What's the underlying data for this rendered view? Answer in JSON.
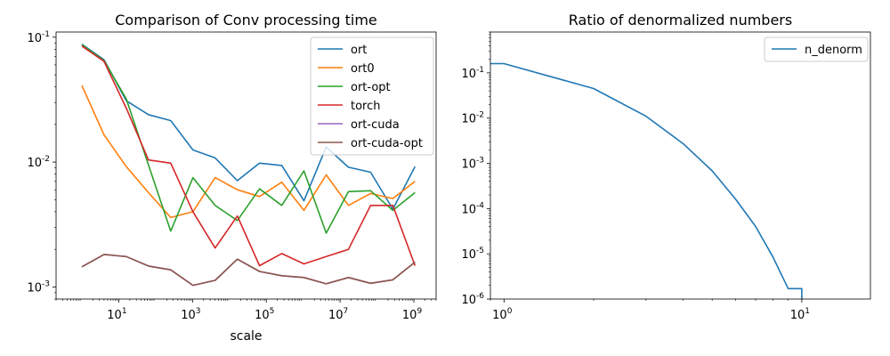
{
  "chart_data": [
    {
      "type": "line",
      "title": "Comparison of Conv processing time",
      "xlabel": "scale",
      "ylabel": "",
      "xscale": "log",
      "yscale": "log",
      "xlim": [
        0.2,
        4000000000.0
      ],
      "ylim": [
        0.0008,
        0.11
      ],
      "xtick_labels": [
        "10^1",
        "10^3",
        "10^5",
        "10^7",
        "10^9"
      ],
      "ytick_labels": [
        "10^-3",
        "10^-2",
        "10^-1"
      ],
      "legend_position": "top-right",
      "grid": false,
      "x": [
        1,
        4,
        16,
        64,
        256,
        1024,
        4096,
        16384,
        65536,
        262144,
        1048576,
        4194304,
        16777216,
        67108864,
        268435456,
        1073741824
      ],
      "series": [
        {
          "name": "ort",
          "color": "#1f77b4",
          "values": [
            0.088,
            0.066,
            0.031,
            0.024,
            0.0215,
            0.0125,
            0.0108,
            0.0071,
            0.0098,
            0.0094,
            0.0049,
            0.0132,
            0.0091,
            0.0083,
            0.0042,
            0.0092
          ]
        },
        {
          "name": "ort0",
          "color": "#ff7f0e",
          "values": [
            0.041,
            0.0165,
            0.0092,
            0.0057,
            0.0036,
            0.004,
            0.0075,
            0.006,
            0.0053,
            0.0069,
            0.0041,
            0.0079,
            0.0045,
            0.0056,
            0.0051,
            0.007
          ]
        },
        {
          "name": "ort-opt",
          "color": "#2ca02c",
          "values": [
            0.087,
            0.065,
            0.032,
            0.0095,
            0.0028,
            0.0075,
            0.0045,
            0.0034,
            0.0061,
            0.0045,
            0.0085,
            0.0027,
            0.0058,
            0.0059,
            0.0041,
            0.0057
          ]
        },
        {
          "name": "torch",
          "color": "#d62728",
          "values": [
            0.085,
            0.064,
            0.027,
            0.0104,
            0.0098,
            0.004,
            0.00205,
            0.0037,
            0.00148,
            0.00185,
            0.00153,
            0.00175,
            0.002,
            0.0045,
            0.0045,
            0.00148
          ]
        },
        {
          "name": "ort-cuda",
          "color": "#9467bd",
          "values": [
            0.00145,
            0.00182,
            0.00175,
            0.00147,
            0.00137,
            0.00103,
            0.00113,
            0.00167,
            0.00133,
            0.00123,
            0.00119,
            0.00106,
            0.00119,
            0.00107,
            0.00114,
            0.00158
          ]
        },
        {
          "name": "ort-cuda-opt",
          "color": "#8c564b",
          "values": [
            0.00145,
            0.00182,
            0.00175,
            0.00147,
            0.00137,
            0.00103,
            0.00113,
            0.00167,
            0.00133,
            0.00123,
            0.00119,
            0.00106,
            0.00119,
            0.00107,
            0.00114,
            0.00158
          ]
        }
      ]
    },
    {
      "type": "line",
      "title": "Ratio of denormalized numbers",
      "xlabel": "",
      "ylabel": "",
      "xscale": "log",
      "yscale": "log",
      "xlim": [
        0.9,
        17
      ],
      "ylim": [
        1e-06,
        0.8
      ],
      "xtick_labels": [
        "10^0",
        "10^1"
      ],
      "ytick_labels": [
        "10^-6",
        "10^-5",
        "10^-4",
        "10^-3",
        "10^-2",
        "10^-1"
      ],
      "legend_position": "top-right",
      "grid": false,
      "x": [
        0.9,
        1,
        2,
        3,
        4,
        5,
        6,
        7,
        8,
        9,
        10,
        10
      ],
      "series": [
        {
          "name": "n_denorm",
          "color": "#1f77b4",
          "values": [
            0.16,
            0.16,
            0.045,
            0.011,
            0.0027,
            0.00068,
            0.00016,
            4e-05,
            8.5e-06,
            1.7e-06,
            1.7e-06,
            5e-07
          ]
        }
      ]
    }
  ]
}
